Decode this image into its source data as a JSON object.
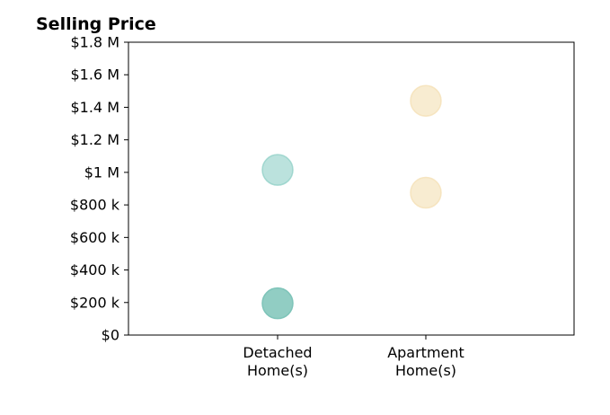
{
  "chart_data": {
    "type": "scatter",
    "title": "Selling Price",
    "xlabel": "",
    "ylabel": "",
    "categories": [
      "Detached\nHome(s)",
      "Apartment\nHome(s)"
    ],
    "y_ticks": [
      {
        "value": 0,
        "label": "$0"
      },
      {
        "value": 200000,
        "label": "$200 k"
      },
      {
        "value": 400000,
        "label": "$400 k"
      },
      {
        "value": 600000,
        "label": "$600 k"
      },
      {
        "value": 800000,
        "label": "$800 k"
      },
      {
        "value": 1000000,
        "label": "$1 M"
      },
      {
        "value": 1200000,
        "label": "$1.2 M"
      },
      {
        "value": 1400000,
        "label": "$1.4 M"
      },
      {
        "value": 1600000,
        "label": "$1.6 M"
      },
      {
        "value": 1800000,
        "label": "$1.8 M"
      }
    ],
    "ylim": [
      0,
      1800000
    ],
    "grid": false,
    "points": [
      {
        "category": "Detached\nHome(s)",
        "value": 1015000,
        "color": "#8ecfc6",
        "opacity": 0.6
      },
      {
        "category": "Detached\nHome(s)",
        "value": 195000,
        "color": "#7ec4b9",
        "opacity": 0.85
      },
      {
        "category": "Apartment\nHome(s)",
        "value": 1440000,
        "color": "#f4dfb3",
        "opacity": 0.6
      },
      {
        "category": "Apartment\nHome(s)",
        "value": 875000,
        "color": "#f4dfb3",
        "opacity": 0.6
      }
    ]
  }
}
